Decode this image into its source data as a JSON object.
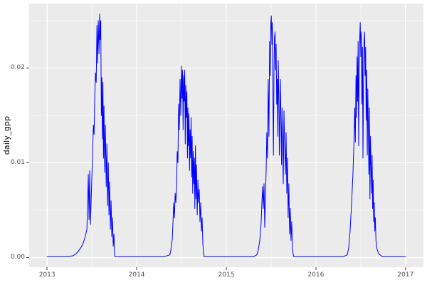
{
  "figure": {
    "background": "#FFFFFF"
  },
  "chart_data": {
    "type": "line",
    "title": "",
    "xlabel": "",
    "ylabel": "daily_gpp",
    "legend_position": "none",
    "grid": true,
    "x_ticks": [
      2013,
      2014,
      2015,
      2016,
      2017
    ],
    "x_tick_labels": [
      "2013",
      "2014",
      "2015",
      "2016",
      "2017"
    ],
    "x_minor_ticks": [
      2013.5,
      2014.5,
      2015.5,
      2016.5
    ],
    "y_ticks": [
      0.0,
      0.01,
      0.02
    ],
    "y_tick_labels": [
      "0.00",
      "0.01",
      "0.02"
    ],
    "y_minor_ticks": [
      0.005,
      0.015,
      0.025
    ],
    "xlim": [
      2012.8,
      2017.2
    ],
    "ylim": [
      -0.001,
      0.0268
    ],
    "style": {
      "panel_bg": "#EBEBEB",
      "grid_major_color": "#FFFFFF",
      "grid_minor_color": "#F5F5F5",
      "tick_mark_color": "#333333",
      "tick_label_color": "#4D4D4D",
      "axis_title_color": "#000000",
      "line_color": "#0000FF"
    },
    "series": [
      {
        "name": "daily_gpp",
        "color": "#0000FF",
        "points": [
          [
            2013.0,
            0.0001
          ],
          [
            2013.2,
            0.0001
          ],
          [
            2013.29,
            0.0002
          ],
          [
            2013.32,
            0.0004
          ],
          [
            2013.35,
            0.0007
          ],
          [
            2013.38,
            0.0011
          ],
          [
            2013.405,
            0.0016
          ],
          [
            2013.425,
            0.0022
          ],
          [
            2013.444,
            0.003
          ],
          [
            2013.452,
            0.0055
          ],
          [
            2013.46,
            0.0088
          ],
          [
            2013.468,
            0.004
          ],
          [
            2013.476,
            0.0092
          ],
          [
            2013.484,
            0.0035
          ],
          [
            2013.492,
            0.006
          ],
          [
            2013.5,
            0.0085
          ],
          [
            2013.508,
            0.011
          ],
          [
            2013.516,
            0.014
          ],
          [
            2013.524,
            0.013
          ],
          [
            2013.532,
            0.017
          ],
          [
            2013.54,
            0.0195
          ],
          [
            2013.548,
            0.0185
          ],
          [
            2013.556,
            0.0245
          ],
          [
            2013.563,
            0.0205
          ],
          [
            2013.571,
            0.025
          ],
          [
            2013.579,
            0.0215
          ],
          [
            2013.587,
            0.0257
          ],
          [
            2013.593,
            0.023
          ],
          [
            2013.599,
            0.025
          ],
          [
            2013.605,
            0.015
          ],
          [
            2013.611,
            0.019
          ],
          [
            2013.617,
            0.0125
          ],
          [
            2013.623,
            0.0185
          ],
          [
            2013.629,
            0.0105
          ],
          [
            2013.635,
            0.016
          ],
          [
            2013.643,
            0.009
          ],
          [
            2013.651,
            0.014
          ],
          [
            2013.659,
            0.0075
          ],
          [
            2013.667,
            0.012
          ],
          [
            2013.675,
            0.0055
          ],
          [
            2013.683,
            0.01
          ],
          [
            2013.69,
            0.0045
          ],
          [
            2013.698,
            0.008
          ],
          [
            2013.706,
            0.003
          ],
          [
            2013.714,
            0.006
          ],
          [
            2013.722,
            0.0022
          ],
          [
            2013.73,
            0.0042
          ],
          [
            2013.738,
            0.0012
          ],
          [
            2013.746,
            0.0025
          ],
          [
            2013.754,
            0.0002
          ],
          [
            2013.76,
            0.0001
          ],
          [
            2014.0,
            0.0001
          ],
          [
            2014.3,
            0.0001
          ],
          [
            2014.37,
            0.0003
          ],
          [
            2014.381,
            0.0008
          ],
          [
            2014.397,
            0.002
          ],
          [
            2014.405,
            0.0038
          ],
          [
            2014.413,
            0.0058
          ],
          [
            2014.421,
            0.0042
          ],
          [
            2014.429,
            0.0068
          ],
          [
            2014.437,
            0.0058
          ],
          [
            2014.445,
            0.0075
          ],
          [
            2014.452,
            0.0112
          ],
          [
            2014.46,
            0.01
          ],
          [
            2014.468,
            0.0162
          ],
          [
            2014.476,
            0.0135
          ],
          [
            2014.484,
            0.0188
          ],
          [
            2014.492,
            0.015
          ],
          [
            2014.5,
            0.0202
          ],
          [
            2014.506,
            0.0168
          ],
          [
            2014.512,
            0.0198
          ],
          [
            2014.518,
            0.0135
          ],
          [
            2014.524,
            0.0192
          ],
          [
            2014.53,
            0.0165
          ],
          [
            2014.536,
            0.0198
          ],
          [
            2014.542,
            0.012
          ],
          [
            2014.548,
            0.0182
          ],
          [
            2014.554,
            0.0148
          ],
          [
            2014.56,
            0.0175
          ],
          [
            2014.566,
            0.0105
          ],
          [
            2014.571,
            0.0158
          ],
          [
            2014.577,
            0.0118
          ],
          [
            2014.583,
            0.0152
          ],
          [
            2014.589,
            0.0092
          ],
          [
            2014.595,
            0.0135
          ],
          [
            2014.601,
            0.0105
          ],
          [
            2014.607,
            0.0148
          ],
          [
            2014.613,
            0.0085
          ],
          [
            2014.619,
            0.0128
          ],
          [
            2014.625,
            0.0068
          ],
          [
            2014.631,
            0.0112
          ],
          [
            2014.637,
            0.0078
          ],
          [
            2014.643,
            0.0105
          ],
          [
            2014.649,
            0.0052
          ],
          [
            2014.655,
            0.0118
          ],
          [
            2014.661,
            0.0062
          ],
          [
            2014.667,
            0.0098
          ],
          [
            2014.675,
            0.0045
          ],
          [
            2014.683,
            0.0082
          ],
          [
            2014.69,
            0.0058
          ],
          [
            2014.698,
            0.0072
          ],
          [
            2014.706,
            0.0038
          ],
          [
            2014.714,
            0.0058
          ],
          [
            2014.722,
            0.0028
          ],
          [
            2014.73,
            0.0042
          ],
          [
            2014.738,
            0.0015
          ],
          [
            2014.746,
            0.0005
          ],
          [
            2014.754,
            0.0001
          ],
          [
            2015.0,
            0.0001
          ],
          [
            2015.3,
            0.0001
          ],
          [
            2015.34,
            0.0003
          ],
          [
            2015.357,
            0.0008
          ],
          [
            2015.373,
            0.0018
          ],
          [
            2015.389,
            0.0038
          ],
          [
            2015.397,
            0.0058
          ],
          [
            2015.405,
            0.0075
          ],
          [
            2015.413,
            0.0052
          ],
          [
            2015.421,
            0.0078
          ],
          [
            2015.429,
            0.0032
          ],
          [
            2015.437,
            0.0068
          ],
          [
            2015.445,
            0.0092
          ],
          [
            2015.452,
            0.0132
          ],
          [
            2015.46,
            0.0105
          ],
          [
            2015.468,
            0.0188
          ],
          [
            2015.476,
            0.0128
          ],
          [
            2015.484,
            0.0228
          ],
          [
            2015.49,
            0.0192
          ],
          [
            2015.496,
            0.0246
          ],
          [
            2015.502,
            0.0255
          ],
          [
            2015.508,
            0.0225
          ],
          [
            2015.514,
            0.0248
          ],
          [
            2015.52,
            0.0172
          ],
          [
            2015.526,
            0.0108
          ],
          [
            2015.532,
            0.0195
          ],
          [
            2015.538,
            0.0232
          ],
          [
            2015.544,
            0.0238
          ],
          [
            2015.55,
            0.0198
          ],
          [
            2015.556,
            0.0225
          ],
          [
            2015.562,
            0.0162
          ],
          [
            2015.568,
            0.0188
          ],
          [
            2015.574,
            0.0128
          ],
          [
            2015.58,
            0.0208
          ],
          [
            2015.586,
            0.0172
          ],
          [
            2015.592,
            0.0108
          ],
          [
            2015.598,
            0.0152
          ],
          [
            2015.604,
            0.0188
          ],
          [
            2015.61,
            0.0145
          ],
          [
            2015.616,
            0.0098
          ],
          [
            2015.622,
            0.0158
          ],
          [
            2015.628,
            0.0122
          ],
          [
            2015.635,
            0.0078
          ],
          [
            2015.643,
            0.0155
          ],
          [
            2015.651,
            0.0118
          ],
          [
            2015.659,
            0.0088
          ],
          [
            2015.667,
            0.0132
          ],
          [
            2015.675,
            0.0068
          ],
          [
            2015.683,
            0.0105
          ],
          [
            2015.69,
            0.0042
          ],
          [
            2015.698,
            0.0078
          ],
          [
            2015.706,
            0.0025
          ],
          [
            2015.714,
            0.0052
          ],
          [
            2015.722,
            0.0018
          ],
          [
            2015.73,
            0.0038
          ],
          [
            2015.738,
            0.001
          ],
          [
            2015.746,
            0.0004
          ],
          [
            2015.754,
            0.0001
          ],
          [
            2016.0,
            0.0001
          ],
          [
            2016.3,
            0.0001
          ],
          [
            2016.35,
            0.0003
          ],
          [
            2016.365,
            0.001
          ],
          [
            2016.381,
            0.0028
          ],
          [
            2016.397,
            0.0055
          ],
          [
            2016.413,
            0.0088
          ],
          [
            2016.425,
            0.0122
          ],
          [
            2016.433,
            0.0158
          ],
          [
            2016.44,
            0.0122
          ],
          [
            2016.447,
            0.0192
          ],
          [
            2016.453,
            0.0148
          ],
          [
            2016.459,
            0.0212
          ],
          [
            2016.465,
            0.0165
          ],
          [
            2016.471,
            0.0228
          ],
          [
            2016.477,
            0.0118
          ],
          [
            2016.483,
            0.0198
          ],
          [
            2016.489,
            0.0232
          ],
          [
            2016.495,
            0.0248
          ],
          [
            2016.501,
            0.0212
          ],
          [
            2016.507,
            0.0238
          ],
          [
            2016.513,
            0.0162
          ],
          [
            2016.519,
            0.0222
          ],
          [
            2016.525,
            0.0105
          ],
          [
            2016.531,
            0.0188
          ],
          [
            2016.537,
            0.0228
          ],
          [
            2016.543,
            0.0238
          ],
          [
            2016.549,
            0.0192
          ],
          [
            2016.555,
            0.0222
          ],
          [
            2016.561,
            0.0145
          ],
          [
            2016.567,
            0.0198
          ],
          [
            2016.573,
            0.0108
          ],
          [
            2016.579,
            0.0178
          ],
          [
            2016.585,
            0.0138
          ],
          [
            2016.591,
            0.0088
          ],
          [
            2016.597,
            0.0158
          ],
          [
            2016.603,
            0.0062
          ],
          [
            2016.609,
            0.0128
          ],
          [
            2016.615,
            0.0098
          ],
          [
            2016.621,
            0.0068
          ],
          [
            2016.627,
            0.0108
          ],
          [
            2016.633,
            0.0052
          ],
          [
            2016.639,
            0.0082
          ],
          [
            2016.645,
            0.0038
          ],
          [
            2016.651,
            0.0058
          ],
          [
            2016.657,
            0.0028
          ],
          [
            2016.663,
            0.0042
          ],
          [
            2016.67,
            0.0018
          ],
          [
            2016.68,
            0.001
          ],
          [
            2016.7,
            0.0004
          ],
          [
            2016.746,
            0.0001
          ],
          [
            2017.0,
            0.0001
          ]
        ]
      }
    ]
  }
}
